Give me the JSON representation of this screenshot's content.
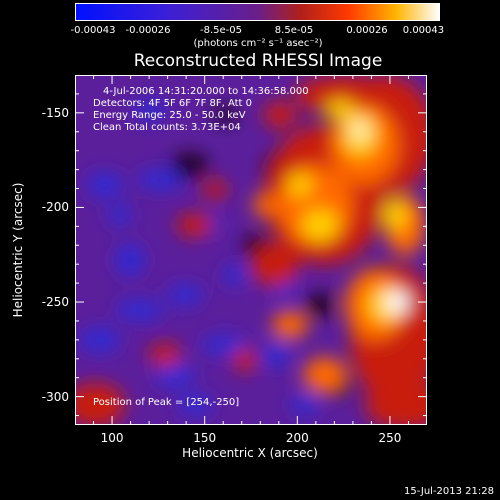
{
  "colorbar": {
    "tick_labels": [
      "-0.00043",
      "-0.00026",
      "-8.5e-05",
      "8.5e-05",
      "0.00026",
      "0.00043"
    ],
    "units_label": "(photons cm⁻² s⁻¹ asec⁻²)"
  },
  "plot": {
    "title": "Reconstructed RHESSI Image",
    "info_lines": [
      "4-Jul-2006 14:31:20.000 to 14:36:58.000",
      "Detectors: 4F 5F 6F 7F 8F, Att 0",
      "Energy Range: 25.0 - 50.0 keV",
      "Clean     Total counts: 3.73E+04"
    ],
    "peak_label": "Position of Peak = [254,-250]",
    "xlabel": "Heliocentric X (arcsec)",
    "ylabel": "Heliocentric Y (arcsec)",
    "xticks": [
      "100",
      "150",
      "200",
      "250"
    ],
    "yticks": [
      "-150",
      "-200",
      "-250",
      "-300"
    ]
  },
  "footer": {
    "timestamp": "15-Jul-2013 21:28"
  },
  "colors": {
    "negative": "#3a1cff",
    "zero": "#5b1f9c",
    "positive_low": "#c81e0a",
    "positive_high": "#ffffff"
  },
  "chart_data": {
    "type": "heatmap",
    "title": "Reconstructed RHESSI Image",
    "xlabel": "Heliocentric X (arcsec)",
    "ylabel": "Heliocentric Y (arcsec)",
    "xlim": [
      80,
      270
    ],
    "ylim": [
      -315,
      -130
    ],
    "zlim": [
      -0.00043,
      0.00043
    ],
    "peak": {
      "x": 254,
      "y": -250
    }
  }
}
